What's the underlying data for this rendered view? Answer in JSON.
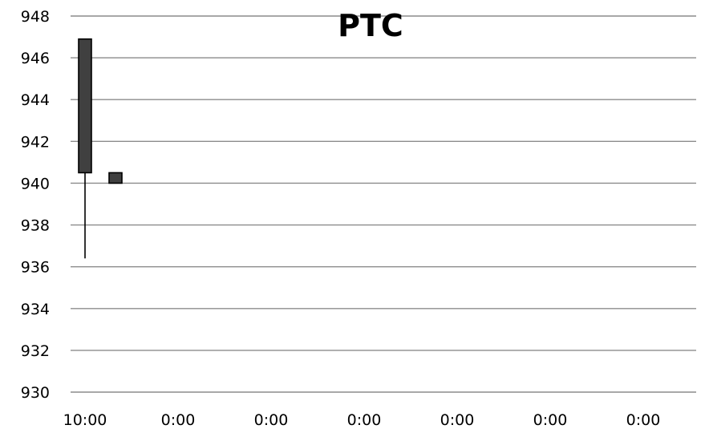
{
  "chart_data": {
    "type": "candlestick",
    "title": "PTC",
    "xlabel": "",
    "ylabel": "",
    "ylim": [
      930,
      948
    ],
    "y_ticks": [
      930,
      932,
      934,
      936,
      938,
      940,
      942,
      944,
      946,
      948
    ],
    "x_tick_labels": [
      "10:00",
      "0:00",
      "0:00",
      "0:00",
      "0:00",
      "0:00",
      "0:00"
    ],
    "grid": true,
    "legend": "none",
    "candles": [
      {
        "open": 946.9,
        "high": 946.9,
        "low": 936.4,
        "close": 940.5
      },
      {
        "open": 940.5,
        "high": 940.5,
        "low": 940.0,
        "close": 940.0
      }
    ],
    "colors": {
      "body": "#404040",
      "outline": "#000000",
      "grid": "#8c8c8c",
      "text": "#000000"
    }
  }
}
